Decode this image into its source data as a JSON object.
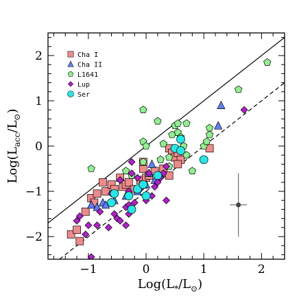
{
  "chart_data": {
    "type": "scatter",
    "title": "",
    "xlabel": "Log(L*/L⊙)",
    "ylabel": "Log(Lacc/L⊙)",
    "xlim": [
      -1.7,
      2.4
    ],
    "ylim": [
      -2.5,
      2.5
    ],
    "xticks": [
      -1,
      0,
      1,
      2
    ],
    "yticks": [
      -2,
      -1,
      0,
      1,
      2
    ],
    "x_tick_labels": [
      "−1",
      "0",
      "1",
      "2"
    ],
    "y_tick_labels": [
      "−2",
      "−1",
      "0",
      "1",
      "2"
    ],
    "legend_position": "top-left",
    "series": [
      {
        "name": "Cha I",
        "marker": "square",
        "color": "#f08a8a",
        "points": [
          [
            -1.3,
            -1.95
          ],
          [
            -1.15,
            -2.1
          ],
          [
            -1.2,
            -1.85
          ],
          [
            -1.05,
            -1.45
          ],
          [
            -0.95,
            -1.15
          ],
          [
            -0.9,
            -1.25
          ],
          [
            -0.85,
            -1.05
          ],
          [
            -0.75,
            -0.8
          ],
          [
            -0.7,
            -1.0
          ],
          [
            -0.6,
            -0.85
          ],
          [
            -0.55,
            -0.95
          ],
          [
            -0.45,
            -0.7
          ],
          [
            -0.4,
            -0.9
          ],
          [
            -0.35,
            -0.85
          ],
          [
            -0.3,
            -0.8
          ],
          [
            -0.2,
            -0.95
          ],
          [
            -0.1,
            -0.75
          ],
          [
            -0.05,
            -0.85
          ],
          [
            0.0,
            -0.7
          ],
          [
            -0.05,
            -0.5
          ],
          [
            0.05,
            -0.65
          ],
          [
            0.15,
            -0.55
          ],
          [
            0.3,
            -0.5
          ],
          [
            0.4,
            -0.05
          ],
          [
            0.45,
            -0.15
          ],
          [
            0.5,
            -0.25
          ],
          [
            0.55,
            -0.15
          ],
          [
            0.6,
            -0.3
          ],
          [
            0.55,
            -0.4
          ],
          [
            0.4,
            -0.65
          ],
          [
            1.1,
            -0.05
          ],
          [
            -0.05,
            -0.35
          ]
        ]
      },
      {
        "name": "Cha II",
        "marker": "triangle",
        "color": "#5f7fff",
        "points": [
          [
            -0.95,
            -1.3
          ],
          [
            -0.85,
            -1.35
          ],
          [
            -0.75,
            -1.25
          ],
          [
            -0.7,
            -1.3
          ],
          [
            -0.55,
            -1.2
          ],
          [
            -0.35,
            -1.1
          ],
          [
            -0.15,
            -1.0
          ],
          [
            0.0,
            -0.85
          ],
          [
            0.05,
            -0.6
          ],
          [
            0.1,
            -0.4
          ],
          [
            0.15,
            -0.75
          ],
          [
            1.25,
            0.45
          ],
          [
            1.3,
            0.9
          ]
        ]
      },
      {
        "name": "L1641",
        "marker": "pentagon",
        "color": "#8ef08e",
        "points": [
          [
            -0.95,
            -0.5
          ],
          [
            -0.35,
            -0.55
          ],
          [
            -0.25,
            -0.65
          ],
          [
            -0.05,
            -0.35
          ],
          [
            -0.05,
            0.1
          ],
          [
            0.0,
            0.0
          ],
          [
            -0.05,
            0.8
          ],
          [
            0.2,
            0.55
          ],
          [
            0.25,
            -0.3
          ],
          [
            0.3,
            0.05
          ],
          [
            0.4,
            -0.25
          ],
          [
            0.4,
            -0.45
          ],
          [
            0.45,
            0.25
          ],
          [
            0.5,
            0.45
          ],
          [
            0.55,
            0.3
          ],
          [
            0.55,
            0.5
          ],
          [
            0.6,
            0.2
          ],
          [
            0.65,
            0.0
          ],
          [
            0.7,
            0.5
          ],
          [
            0.7,
            -0.2
          ],
          [
            1.0,
            0.0
          ],
          [
            1.05,
            0.1
          ],
          [
            1.1,
            0.25
          ],
          [
            1.1,
            0.4
          ],
          [
            1.6,
            1.25
          ],
          [
            2.1,
            1.85
          ],
          [
            0.8,
            -0.55
          ]
        ]
      },
      {
        "name": "Lup",
        "marker": "diamond",
        "color": "#b41ecf",
        "points": [
          [
            -1.2,
            -1.65
          ],
          [
            -1.15,
            -1.55
          ],
          [
            -1.05,
            -1.95
          ],
          [
            -1.0,
            -1.75
          ],
          [
            -0.95,
            -2.45
          ],
          [
            -0.85,
            -1.75
          ],
          [
            -0.8,
            -1.45
          ],
          [
            -0.65,
            -1.8
          ],
          [
            -0.55,
            -1.5
          ],
          [
            -0.5,
            -1.6
          ],
          [
            -0.45,
            -1.65
          ],
          [
            -0.35,
            -1.75
          ],
          [
            -0.35,
            -1.35
          ],
          [
            -0.3,
            -1.5
          ],
          [
            -0.2,
            -1.25
          ],
          [
            -0.25,
            -0.6
          ],
          [
            -0.15,
            -0.7
          ],
          [
            -0.1,
            -0.95
          ],
          [
            0.0,
            -1.2
          ],
          [
            0.1,
            -1.1
          ],
          [
            0.15,
            -0.9
          ],
          [
            0.2,
            -0.8
          ],
          [
            0.25,
            -0.7
          ],
          [
            0.3,
            -0.6
          ],
          [
            0.35,
            -1.2
          ],
          [
            0.35,
            -0.45
          ],
          [
            -0.3,
            -1.0
          ],
          [
            -0.25,
            -0.35
          ],
          [
            -0.45,
            -0.75
          ],
          [
            -0.6,
            -1.05
          ],
          [
            -0.3,
            -1.3
          ],
          [
            0.05,
            -0.6
          ],
          [
            1.7,
            0.8
          ]
        ]
      },
      {
        "name": "Ser",
        "marker": "circle",
        "color": "#22e8e8",
        "points": [
          [
            -0.6,
            -1.25
          ],
          [
            -0.55,
            -1.05
          ],
          [
            -0.3,
            -1.1
          ],
          [
            -0.25,
            -1.4
          ],
          [
            -0.15,
            -0.95
          ],
          [
            0.0,
            -1.1
          ],
          [
            0.2,
            -0.65
          ],
          [
            0.5,
            -0.05
          ],
          [
            0.6,
            0.15
          ],
          [
            0.6,
            -0.1
          ],
          [
            1.0,
            -0.3
          ],
          [
            -0.05,
            -0.85
          ]
        ]
      }
    ],
    "lines": [
      {
        "style": "solid",
        "points": [
          [
            -1.7,
            -1.7
          ],
          [
            2.4,
            2.4
          ]
        ]
      },
      {
        "style": "dashed",
        "points": [
          [
            -1.5,
            -2.5
          ],
          [
            2.4,
            1.4
          ]
        ]
      }
    ],
    "error_bar": {
      "x": 1.6,
      "y": -1.3,
      "xerr": 0.15,
      "yerr": 0.7
    }
  }
}
